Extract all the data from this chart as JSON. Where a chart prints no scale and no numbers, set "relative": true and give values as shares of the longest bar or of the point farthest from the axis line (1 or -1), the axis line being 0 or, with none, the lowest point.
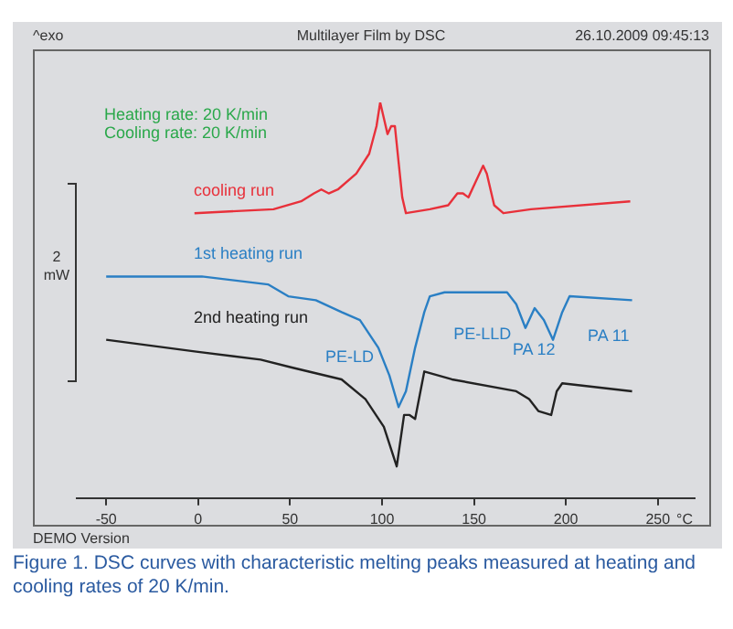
{
  "chart_data": {
    "type": "line",
    "title": "Multilayer Film by DSC",
    "xlabel": "°C",
    "ylabel": "2 mW",
    "relative": true,
    "xlim": [
      -66,
      270
    ],
    "xticks": [
      -50,
      0,
      50,
      100,
      150,
      200,
      250
    ],
    "grid": false,
    "legend": false,
    "marker": "none",
    "line_style": "solid",
    "tick_labels": "x",
    "annotations": [
      "^exo",
      "26.10.2009 09:45:13",
      "Heating rate: 20 K/min",
      "Cooling rate: 20 K/min",
      "DEMO Version",
      "Figure 1. DSC curves with characteristic melting peaks measured at heating and cooling rates of 20 K/min.",
      {
        "text": "PE-LD",
        "x": 109,
        "y": 0.23
      },
      {
        "text": "PE-LLD",
        "x": 118,
        "y": 0.38
      },
      {
        "text": "PA 12",
        "x": 178,
        "y": 0.43
      },
      {
        "text": "PA 11",
        "x": 193,
        "y": 0.4
      }
    ],
    "series": [
      {
        "name": "cooling run",
        "color": "#e8303a",
        "x": [
          -2,
          41,
          56,
          63,
          67,
          71,
          76,
          86,
          93,
          97,
          99,
          101,
          103,
          105,
          107,
          109,
          111,
          113,
          126,
          136,
          141,
          144,
          147,
          151,
          155,
          157,
          161,
          166,
          181,
          235
        ],
        "values": [
          0.72,
          0.73,
          0.75,
          0.77,
          0.78,
          0.77,
          0.78,
          0.82,
          0.87,
          0.94,
          1.0,
          0.96,
          0.92,
          0.94,
          0.94,
          0.85,
          0.76,
          0.72,
          0.73,
          0.74,
          0.77,
          0.77,
          0.76,
          0.8,
          0.84,
          0.82,
          0.74,
          0.72,
          0.73,
          0.75
        ]
      },
      {
        "name": "1st heating run",
        "color": "#2a7fc4",
        "x": [
          -50,
          2,
          38,
          49,
          64,
          78,
          88,
          98,
          104,
          109,
          113,
          118,
          123,
          126,
          134,
          168,
          173,
          178,
          183,
          188,
          193,
          198,
          202,
          236
        ],
        "values": [
          0.56,
          0.56,
          0.54,
          0.51,
          0.5,
          0.47,
          0.45,
          0.38,
          0.31,
          0.23,
          0.27,
          0.38,
          0.47,
          0.51,
          0.52,
          0.52,
          0.49,
          0.43,
          0.48,
          0.45,
          0.4,
          0.47,
          0.51,
          0.5
        ]
      },
      {
        "name": "2nd heating run",
        "color": "#222222",
        "x": [
          -50,
          -1,
          34,
          51,
          78,
          91,
          101,
          108,
          112,
          115,
          118,
          123,
          138,
          173,
          180,
          185,
          192,
          195,
          198,
          236
        ],
        "values": [
          0.4,
          0.37,
          0.35,
          0.33,
          0.3,
          0.25,
          0.18,
          0.08,
          0.21,
          0.21,
          0.2,
          0.32,
          0.3,
          0.27,
          0.25,
          0.22,
          0.21,
          0.27,
          0.29,
          0.27
        ]
      }
    ]
  }
}
